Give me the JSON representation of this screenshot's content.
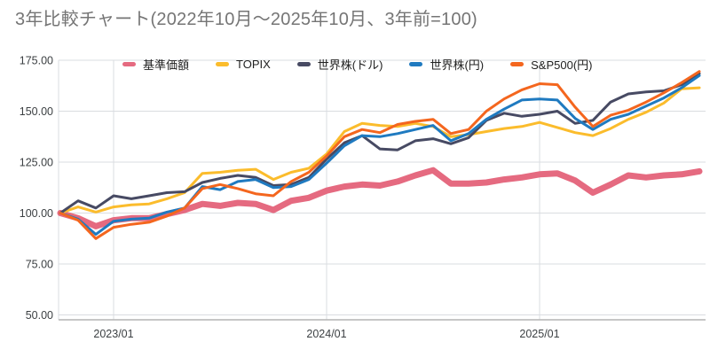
{
  "title": "3年比較チャート(2022年10月〜2025年10月、3年前=100)",
  "colors": {
    "title_text": "#757575",
    "axis_label_text": "#3c4043",
    "gridline": "#dadce0",
    "axis_line": "#b3b3b3",
    "background": "#ffffff"
  },
  "chart_data": {
    "type": "line",
    "title": "3年比較チャート(2022年10月〜2025年10月、3年前=100)",
    "xlabel": "",
    "ylabel": "",
    "ylim": [
      50,
      175
    ],
    "ytick_step": 25,
    "ytick_labels": [
      "50.00",
      "75.00",
      "100.00",
      "125.00",
      "150.00",
      "175.00"
    ],
    "xtick_labels_shown": [
      "2023/01",
      "2024/01",
      "2025/01"
    ],
    "grid": true,
    "legend_position": "top",
    "months": [
      "2022/10",
      "2022/11",
      "2022/12",
      "2023/01",
      "2023/02",
      "2023/03",
      "2023/04",
      "2023/05",
      "2023/06",
      "2023/07",
      "2023/08",
      "2023/09",
      "2023/10",
      "2023/11",
      "2023/12",
      "2024/01",
      "2024/02",
      "2024/03",
      "2024/04",
      "2024/05",
      "2024/06",
      "2024/07",
      "2024/08",
      "2024/09",
      "2024/10",
      "2024/11",
      "2024/12",
      "2025/01",
      "2025/02",
      "2025/03",
      "2025/04",
      "2025/05",
      "2025/06",
      "2025/07",
      "2025/08",
      "2025/09",
      "2025/10"
    ],
    "series": [
      {
        "name": "基準価額",
        "color": "#e56a80",
        "line_width": 7,
        "values": [
          100,
          97.5,
          93.5,
          96.5,
          97.5,
          97.5,
          99.5,
          101.5,
          104.5,
          103.5,
          105,
          104.5,
          101.5,
          106,
          107.5,
          111,
          113,
          114,
          113.5,
          115.5,
          118.5,
          121,
          114.5,
          114.5,
          115,
          116.5,
          117.5,
          119,
          119.5,
          116,
          110,
          114,
          118.5,
          117.5,
          118.5,
          119,
          120.5
        ]
      },
      {
        "name": "TOPIX",
        "color": "#fbbc2c",
        "line_width": 3,
        "values": [
          100,
          103,
          100.5,
          103,
          104,
          104.5,
          107,
          110,
          119.5,
          120,
          121,
          121.5,
          116.5,
          120,
          122,
          129,
          140,
          144,
          143,
          142.5,
          144,
          142.5,
          137.5,
          138.5,
          140,
          141.5,
          142.5,
          144.5,
          142,
          139.5,
          138,
          141.5,
          146,
          149.5,
          154,
          161,
          161.5
        ]
      },
      {
        "name": "世界株(ドル)",
        "color": "#474a63",
        "line_width": 3,
        "values": [
          100,
          106,
          102.5,
          108.5,
          107,
          108.5,
          110,
          110.5,
          115,
          117,
          118.5,
          117.5,
          113.5,
          114,
          117.5,
          126.5,
          134.5,
          138,
          131.5,
          131,
          135.5,
          136.5,
          134,
          137,
          145.5,
          149,
          147.5,
          148.5,
          150,
          144,
          145.5,
          154.5,
          158.5,
          159.5,
          160,
          163,
          168.5
        ]
      },
      {
        "name": "世界株(円)",
        "color": "#1f7ac0",
        "line_width": 3,
        "values": [
          100,
          97,
          89.5,
          96,
          97,
          97.5,
          100.5,
          102.5,
          113,
          111.5,
          115.5,
          116.5,
          112.5,
          113,
          116.5,
          124.5,
          133,
          138,
          137.5,
          139,
          141,
          143,
          135.5,
          139,
          146,
          151,
          155.5,
          156,
          155.5,
          146.5,
          141,
          146,
          148.5,
          152.5,
          156.5,
          161.5,
          167.5
        ]
      },
      {
        "name": "S&P500(円)",
        "color": "#f4661e",
        "line_width": 3,
        "values": [
          100,
          96.5,
          87.5,
          93,
          94.5,
          95.5,
          98.5,
          102.5,
          112,
          114,
          112,
          109.5,
          108.5,
          115.5,
          120,
          128,
          137.5,
          141,
          139.5,
          143.5,
          145,
          146,
          139,
          141,
          150,
          156,
          160.5,
          163.5,
          163,
          152,
          142.5,
          148,
          150.5,
          154.5,
          159,
          164,
          169.5
        ]
      }
    ]
  }
}
